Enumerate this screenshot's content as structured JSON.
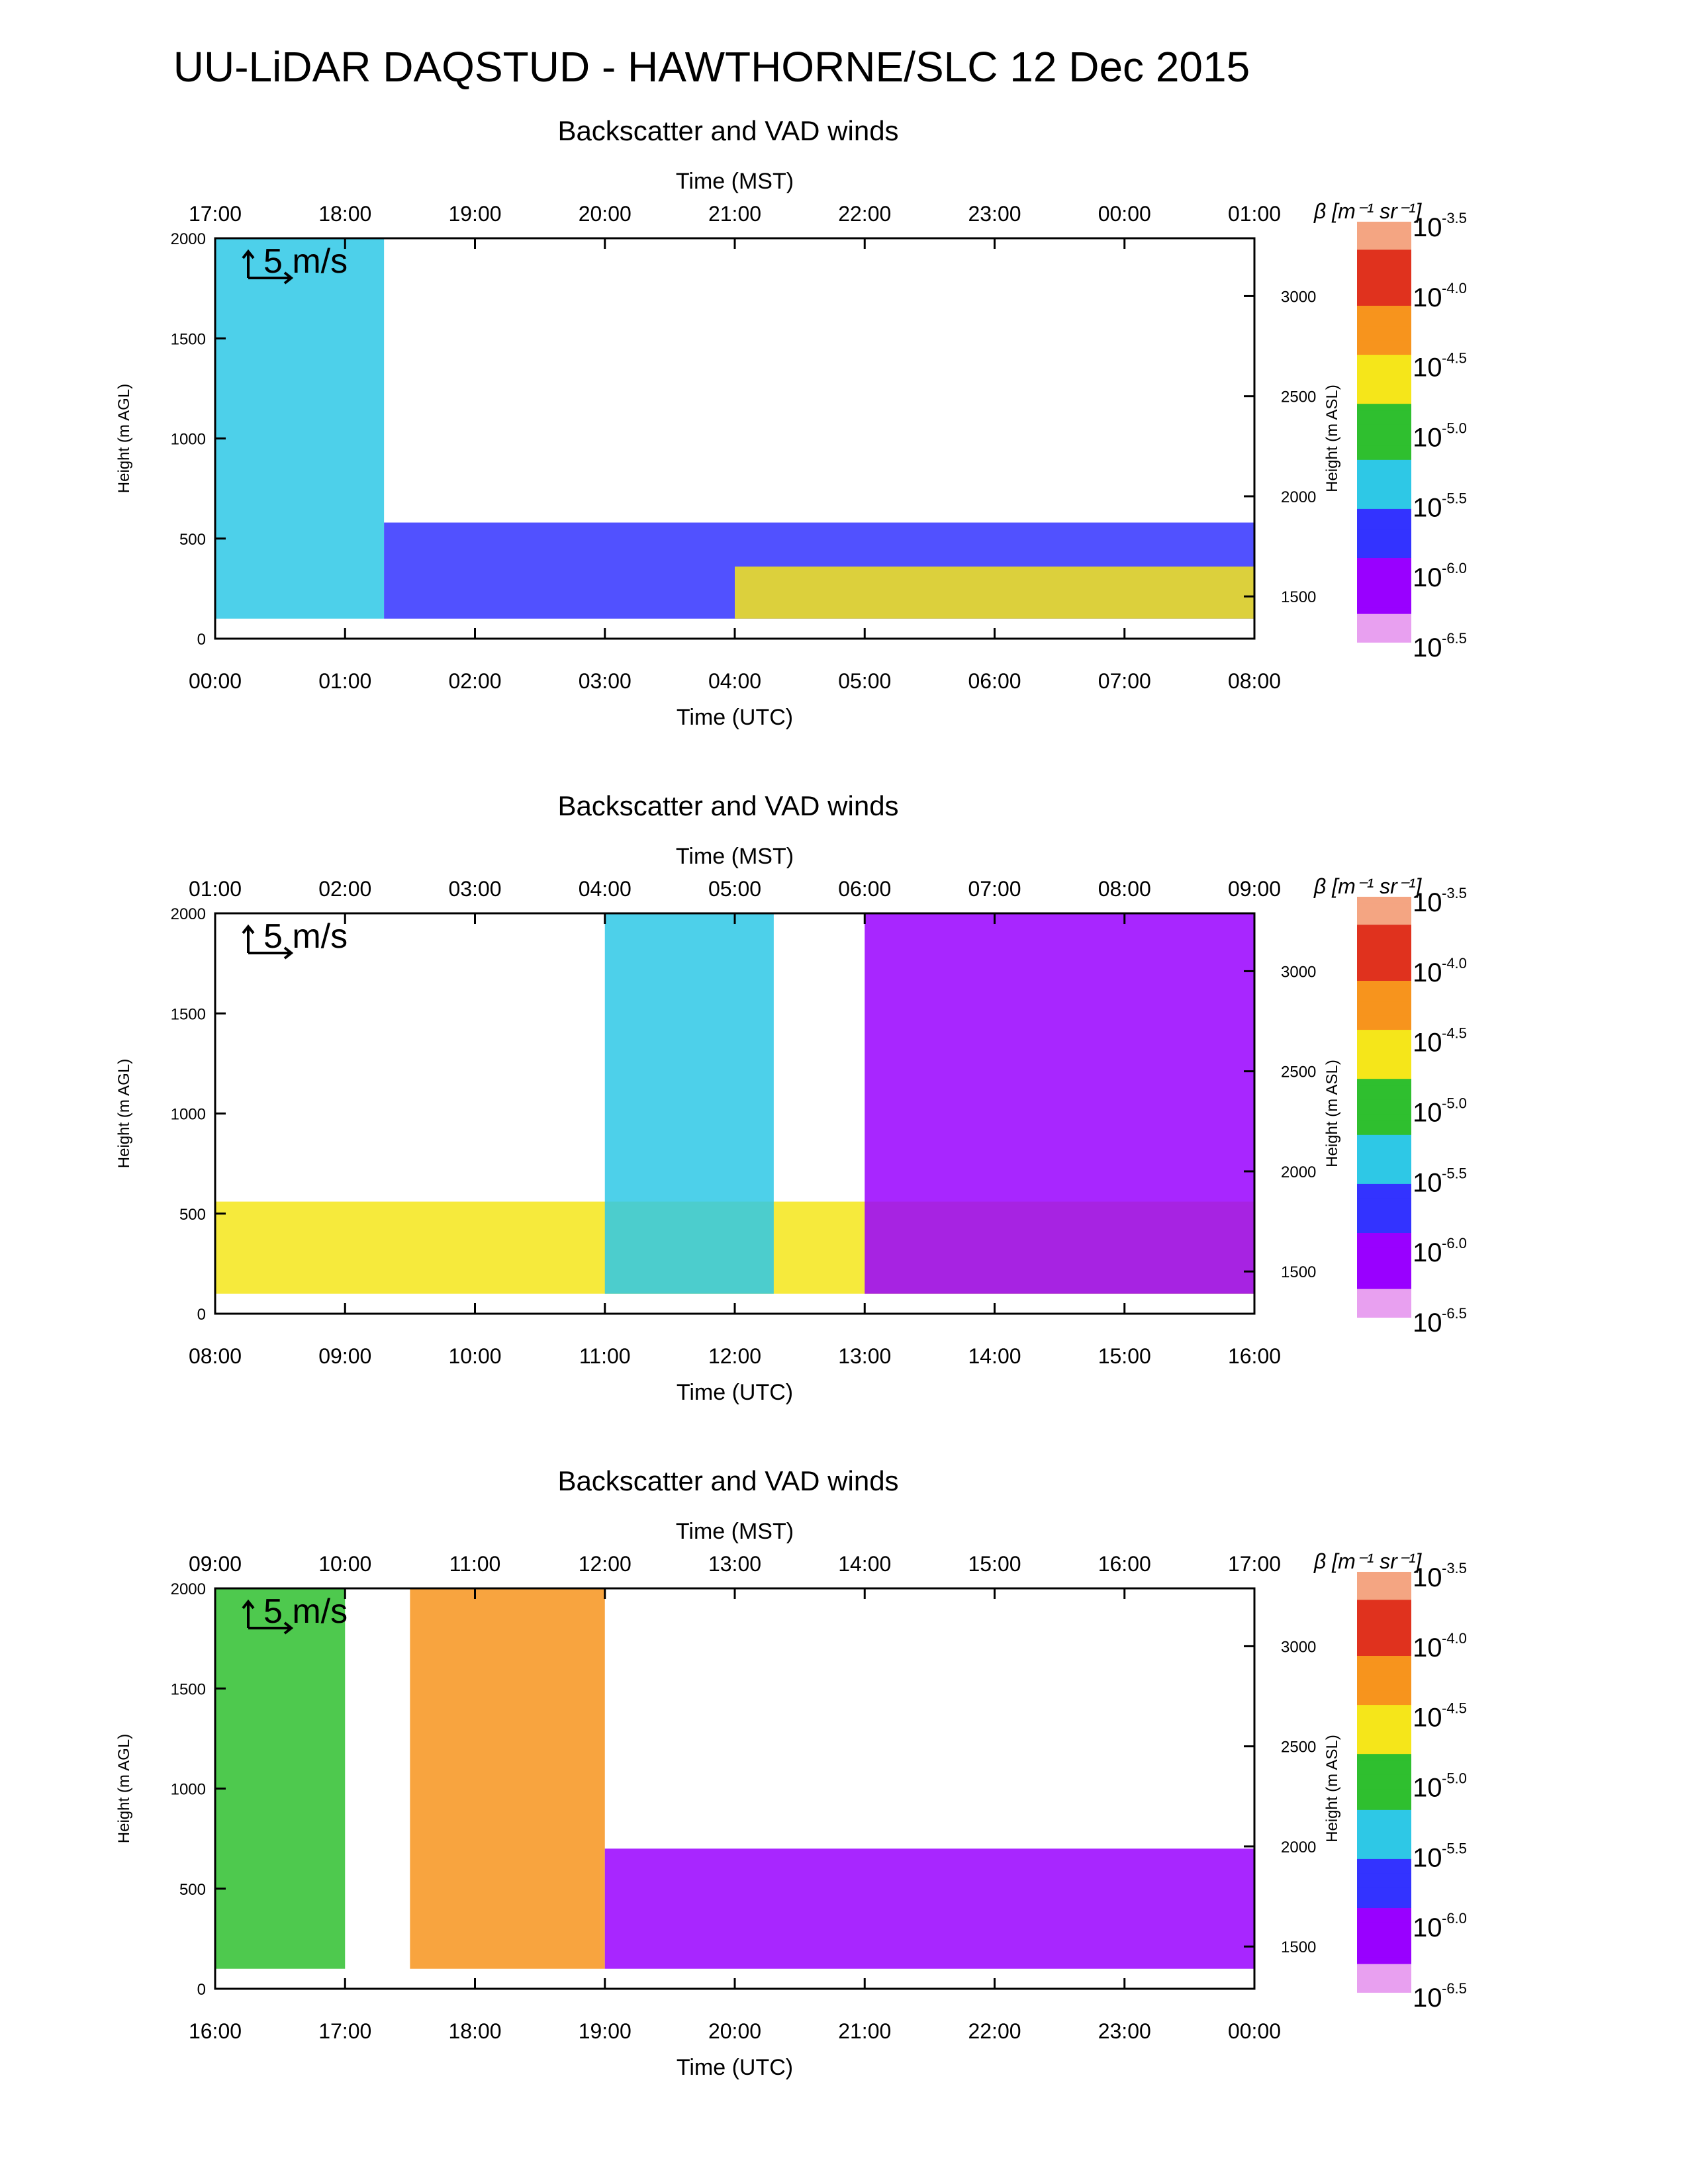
{
  "title": "UU-LiDAR DAQSTUD - HAWTHORNE/SLC 12 Dec 2015",
  "chart_data": [
    {
      "type": "heatmap",
      "title": "Backscatter and VAD winds",
      "top_axis_label": "Time (MST)",
      "top_ticks": [
        "17:00",
        "18:00",
        "19:00",
        "20:00",
        "21:00",
        "22:00",
        "23:00",
        "00:00",
        "01:00"
      ],
      "bottom_axis_label": "Time (UTC)",
      "bottom_ticks": [
        "00:00",
        "01:00",
        "02:00",
        "03:00",
        "04:00",
        "05:00",
        "06:00",
        "07:00",
        "08:00"
      ],
      "ylabel": "Height (m AGL)",
      "y_ticks": [
        "0",
        "500",
        "1000",
        "1500",
        "2000"
      ],
      "ylim": [
        0,
        2000
      ],
      "y2label": "Height (m ASL)",
      "y2_ticks": [
        "1500",
        "2000",
        "2500",
        "3000"
      ],
      "y2lim": [
        1289,
        3289
      ],
      "colorbar_label": "β [m⁻¹ sr⁻¹]",
      "colorbar_exponents": [
        "-3.5",
        "-4.0",
        "-4.5",
        "-5.0",
        "-5.5",
        "-6.0",
        "-6.5"
      ],
      "colorbar_base": "10",
      "scale_arrow_label": "5 m/s",
      "regimes": [
        {
          "t_start": 0.0,
          "t_end": 1.3,
          "top": 2000,
          "level": 5.2
        },
        {
          "t_start": 1.3,
          "t_end": 8.0,
          "top": 580,
          "level": 5.6
        },
        {
          "t_start": 4.0,
          "t_end": 8.0,
          "top": 360,
          "level": 4.5
        }
      ]
    },
    {
      "type": "heatmap",
      "title": "Backscatter and VAD winds",
      "top_axis_label": "Time (MST)",
      "top_ticks": [
        "01:00",
        "02:00",
        "03:00",
        "04:00",
        "05:00",
        "06:00",
        "07:00",
        "08:00",
        "09:00"
      ],
      "bottom_axis_label": "Time (UTC)",
      "bottom_ticks": [
        "08:00",
        "09:00",
        "10:00",
        "11:00",
        "12:00",
        "13:00",
        "14:00",
        "15:00",
        "16:00"
      ],
      "ylabel": "Height (m AGL)",
      "y_ticks": [
        "0",
        "500",
        "1000",
        "1500",
        "2000"
      ],
      "ylim": [
        0,
        2000
      ],
      "y2label": "Height (m ASL)",
      "y2_ticks": [
        "1500",
        "2000",
        "2500",
        "3000"
      ],
      "y2lim": [
        1289,
        3289
      ],
      "colorbar_label": "β [m⁻¹ sr⁻¹]",
      "colorbar_exponents": [
        "-3.5",
        "-4.0",
        "-4.5",
        "-5.0",
        "-5.5",
        "-6.0",
        "-6.5"
      ],
      "colorbar_base": "10",
      "scale_arrow_label": "5 m/s",
      "regimes": [
        {
          "t_start": 8.0,
          "t_end": 16.0,
          "top": 560,
          "level": 4.6
        },
        {
          "t_start": 11.0,
          "t_end": 12.3,
          "top": 2000,
          "level": 5.5
        },
        {
          "t_start": 13.0,
          "t_end": 16.0,
          "top": 2000,
          "level": 6.0
        }
      ]
    },
    {
      "type": "heatmap",
      "title": "Backscatter and VAD winds",
      "top_axis_label": "Time (MST)",
      "top_ticks": [
        "09:00",
        "10:00",
        "11:00",
        "12:00",
        "13:00",
        "14:00",
        "15:00",
        "16:00",
        "17:00"
      ],
      "bottom_axis_label": "Time (UTC)",
      "bottom_ticks": [
        "16:00",
        "17:00",
        "18:00",
        "19:00",
        "20:00",
        "21:00",
        "22:00",
        "23:00",
        "00:00"
      ],
      "ylabel": "Height (m AGL)",
      "y_ticks": [
        "0",
        "500",
        "1000",
        "1500",
        "2000"
      ],
      "ylim": [
        0,
        2000
      ],
      "y2label": "Height (m ASL)",
      "y2_ticks": [
        "1500",
        "2000",
        "2500",
        "3000"
      ],
      "y2lim": [
        1289,
        3289
      ],
      "colorbar_label": "β [m⁻¹ sr⁻¹]",
      "colorbar_exponents": [
        "-3.5",
        "-4.0",
        "-4.5",
        "-5.0",
        "-5.5",
        "-6.0",
        "-6.5"
      ],
      "colorbar_base": "10",
      "scale_arrow_label": "5 m/s",
      "regimes": [
        {
          "t_start": 16.0,
          "t_end": 17.0,
          "top": 2000,
          "level": 5.0
        },
        {
          "t_start": 17.5,
          "t_end": 19.0,
          "top": 2000,
          "level": 4.1
        },
        {
          "t_start": 19.0,
          "t_end": 24.0,
          "top": 700,
          "level": 6.0
        }
      ]
    }
  ],
  "colors": {
    "cb_top": "#f4a582",
    "red": "#e0321e",
    "orange": "#f7941d",
    "yellow": "#f5e61a",
    "green": "#2fbf2f",
    "cyan": "#2ec8e6",
    "blue": "#3333ff",
    "purple": "#9900ff",
    "pink": "#e8a0f0"
  }
}
